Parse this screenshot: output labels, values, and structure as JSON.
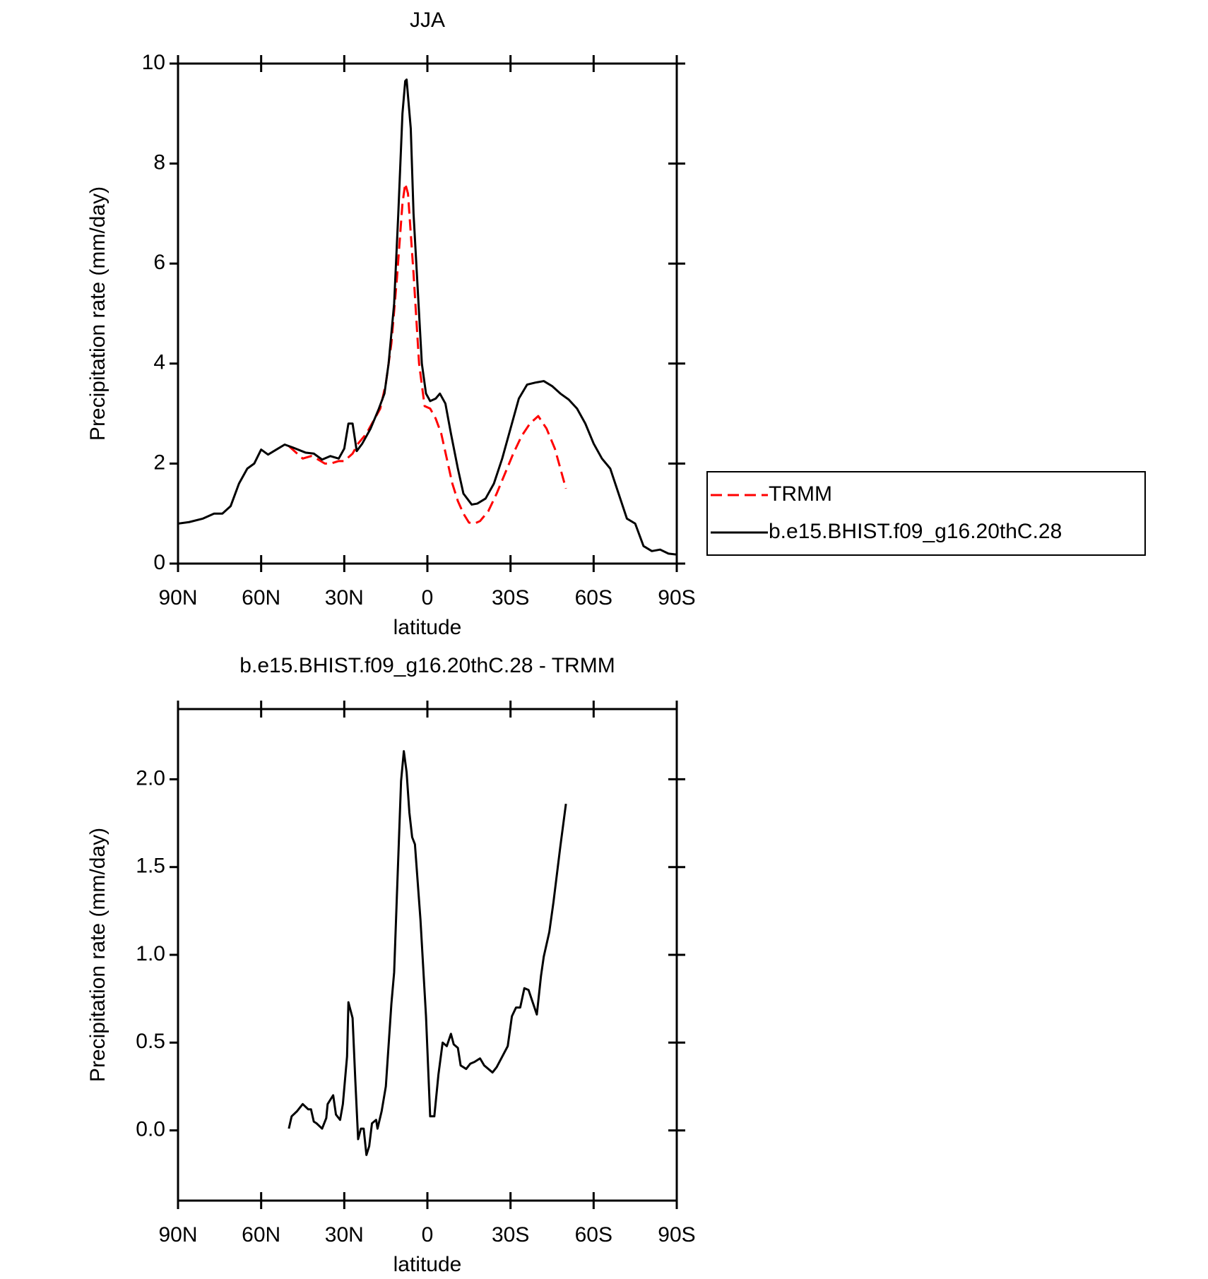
{
  "chart_data": [
    {
      "type": "line",
      "title": "JJA",
      "xlabel": "latitude",
      "ylabel": "Precipitation rate (mm/day)",
      "xlim": [
        90,
        -90
      ],
      "xticks": [
        {
          "value": 90,
          "label": "90N"
        },
        {
          "value": 60,
          "label": "60N"
        },
        {
          "value": 30,
          "label": "30N"
        },
        0,
        {
          "value": -30,
          "label": "30S"
        },
        {
          "value": -60,
          "label": "60S"
        },
        {
          "value": -90,
          "label": "90S"
        }
      ],
      "ylim": [
        0,
        10
      ],
      "yticks": [
        0,
        2,
        4,
        6,
        8,
        10
      ],
      "legend": "right",
      "series": [
        {
          "name": "TRMM",
          "color": "#ff0000",
          "line_style": "dashed",
          "x": [
            50,
            47,
            45,
            42,
            40,
            37,
            35,
            32,
            30,
            27,
            25,
            22,
            20,
            17,
            15,
            13,
            11,
            9,
            8,
            7,
            5,
            3,
            1,
            -1,
            -3,
            -5,
            -7,
            -9,
            -11,
            -13,
            -15,
            -17,
            -19,
            -22,
            -25,
            -28,
            -31,
            -34,
            -37,
            -40,
            -43,
            -46,
            -50
          ],
          "values": [
            2.35,
            2.2,
            2.1,
            2.15,
            2.1,
            2.0,
            2.0,
            2.05,
            2.05,
            2.2,
            2.4,
            2.6,
            2.8,
            3.1,
            3.6,
            4.4,
            5.7,
            7.2,
            7.6,
            7.4,
            5.8,
            4.0,
            3.15,
            3.1,
            2.9,
            2.6,
            2.1,
            1.6,
            1.25,
            1.0,
            0.82,
            0.8,
            0.85,
            1.05,
            1.4,
            1.8,
            2.2,
            2.55,
            2.8,
            2.95,
            2.7,
            2.3,
            1.5
          ]
        },
        {
          "name": "b.e15.BHIST.f09_g16.20thC.28",
          "color": "#000000",
          "line_style": "solid",
          "x": [
            90,
            86,
            81,
            77,
            74,
            71,
            68,
            65,
            62.5,
            60,
            57.5,
            54.5,
            51.5,
            48.5,
            44,
            41,
            38,
            35,
            32,
            30,
            28.5,
            27,
            25.5,
            23.5,
            20.5,
            17.5,
            15.5,
            14,
            12,
            10.5,
            9,
            8,
            7.5,
            6,
            5,
            3.5,
            2,
            0.5,
            -1,
            -3,
            -4.5,
            -6.5,
            -8.5,
            -11,
            -13,
            -16,
            -18,
            -21,
            -24,
            -27,
            -30,
            -33,
            -36,
            -39,
            -42,
            -45,
            -48,
            -51,
            -54,
            -57,
            -60,
            -63,
            -66,
            -69,
            -72,
            -75,
            -78,
            -81,
            -84,
            -87,
            -90
          ],
          "values": [
            0.8,
            0.83,
            0.9,
            1.0,
            1.0,
            1.15,
            1.6,
            1.9,
            2.0,
            2.28,
            2.18,
            2.28,
            2.38,
            2.32,
            2.22,
            2.2,
            2.08,
            2.15,
            2.1,
            2.3,
            2.8,
            2.8,
            2.25,
            2.4,
            2.7,
            3.1,
            3.4,
            4.0,
            5.2,
            7.0,
            9.0,
            9.65,
            9.68,
            8.7,
            7.0,
            5.5,
            4.0,
            3.4,
            3.25,
            3.3,
            3.4,
            3.2,
            2.6,
            1.9,
            1.4,
            1.18,
            1.2,
            1.3,
            1.6,
            2.1,
            2.7,
            3.3,
            3.58,
            3.62,
            3.65,
            3.55,
            3.4,
            3.28,
            3.1,
            2.8,
            2.4,
            2.1,
            1.9,
            1.4,
            0.9,
            0.8,
            0.35,
            0.25,
            0.28,
            0.2,
            0.18
          ]
        }
      ]
    },
    {
      "type": "line",
      "title": "b.e15.BHIST.f09_g16.20thC.28 - TRMM",
      "xlabel": "latitude",
      "ylabel": "Precipitation rate (mm/day)",
      "xlim": [
        90,
        -90
      ],
      "xticks": [
        {
          "value": 90,
          "label": "90N"
        },
        {
          "value": 60,
          "label": "60N"
        },
        {
          "value": 30,
          "label": "30N"
        },
        0,
        {
          "value": -30,
          "label": "30S"
        },
        {
          "value": -60,
          "label": "60S"
        },
        {
          "value": -90,
          "label": "90S"
        }
      ],
      "ylim": [
        -0.4,
        2.4
      ],
      "yticks": [
        {
          "value": 0,
          "label": "0.0"
        },
        0.5,
        {
          "value": 1,
          "label": "1.0"
        },
        1.5,
        {
          "value": 2,
          "label": "2.0"
        }
      ],
      "series": [
        {
          "color": "#000000",
          "line_style": "solid",
          "x": [
            50,
            49,
            47,
            45,
            43,
            42,
            41,
            40,
            38,
            36.5,
            36,
            34,
            33,
            31.5,
            30.5,
            29,
            28.5,
            27,
            26,
            25,
            24,
            23,
            22,
            21,
            20,
            18.5,
            18,
            16.5,
            15,
            13,
            12,
            11,
            9.5,
            8.5,
            7.5,
            6.5,
            5.5,
            4.5,
            2.5,
            0.5,
            -1,
            -2.5,
            -4,
            -5.5,
            -7,
            -8.5,
            -9.5,
            -11,
            -12,
            -14,
            -15.5,
            -17,
            -19,
            -20.5,
            -22,
            -23.5,
            -25,
            -27,
            -29,
            -30.5,
            -32,
            -33.5,
            -35,
            -36.5,
            -39.5,
            -41,
            -42,
            -44,
            -45.5,
            -48,
            -50
          ],
          "values": [
            0.01,
            0.08,
            0.11,
            0.15,
            0.12,
            0.12,
            0.05,
            0.04,
            0.01,
            0.07,
            0.15,
            0.2,
            0.09,
            0.06,
            0.15,
            0.42,
            0.73,
            0.64,
            0.28,
            -0.05,
            0.01,
            0.01,
            -0.14,
            -0.09,
            0.04,
            0.06,
            0.01,
            0.11,
            0.25,
            0.72,
            0.9,
            1.34,
            1.99,
            2.16,
            2.04,
            1.81,
            1.67,
            1.63,
            1.2,
            0.65,
            0.08,
            0.08,
            0.32,
            0.5,
            0.48,
            0.55,
            0.49,
            0.47,
            0.37,
            0.35,
            0.38,
            0.39,
            0.41,
            0.37,
            0.35,
            0.33,
            0.36,
            0.42,
            0.48,
            0.65,
            0.7,
            0.7,
            0.81,
            0.8,
            0.66,
            0.88,
            0.99,
            1.13,
            1.3,
            1.62,
            1.86
          ]
        }
      ]
    }
  ]
}
